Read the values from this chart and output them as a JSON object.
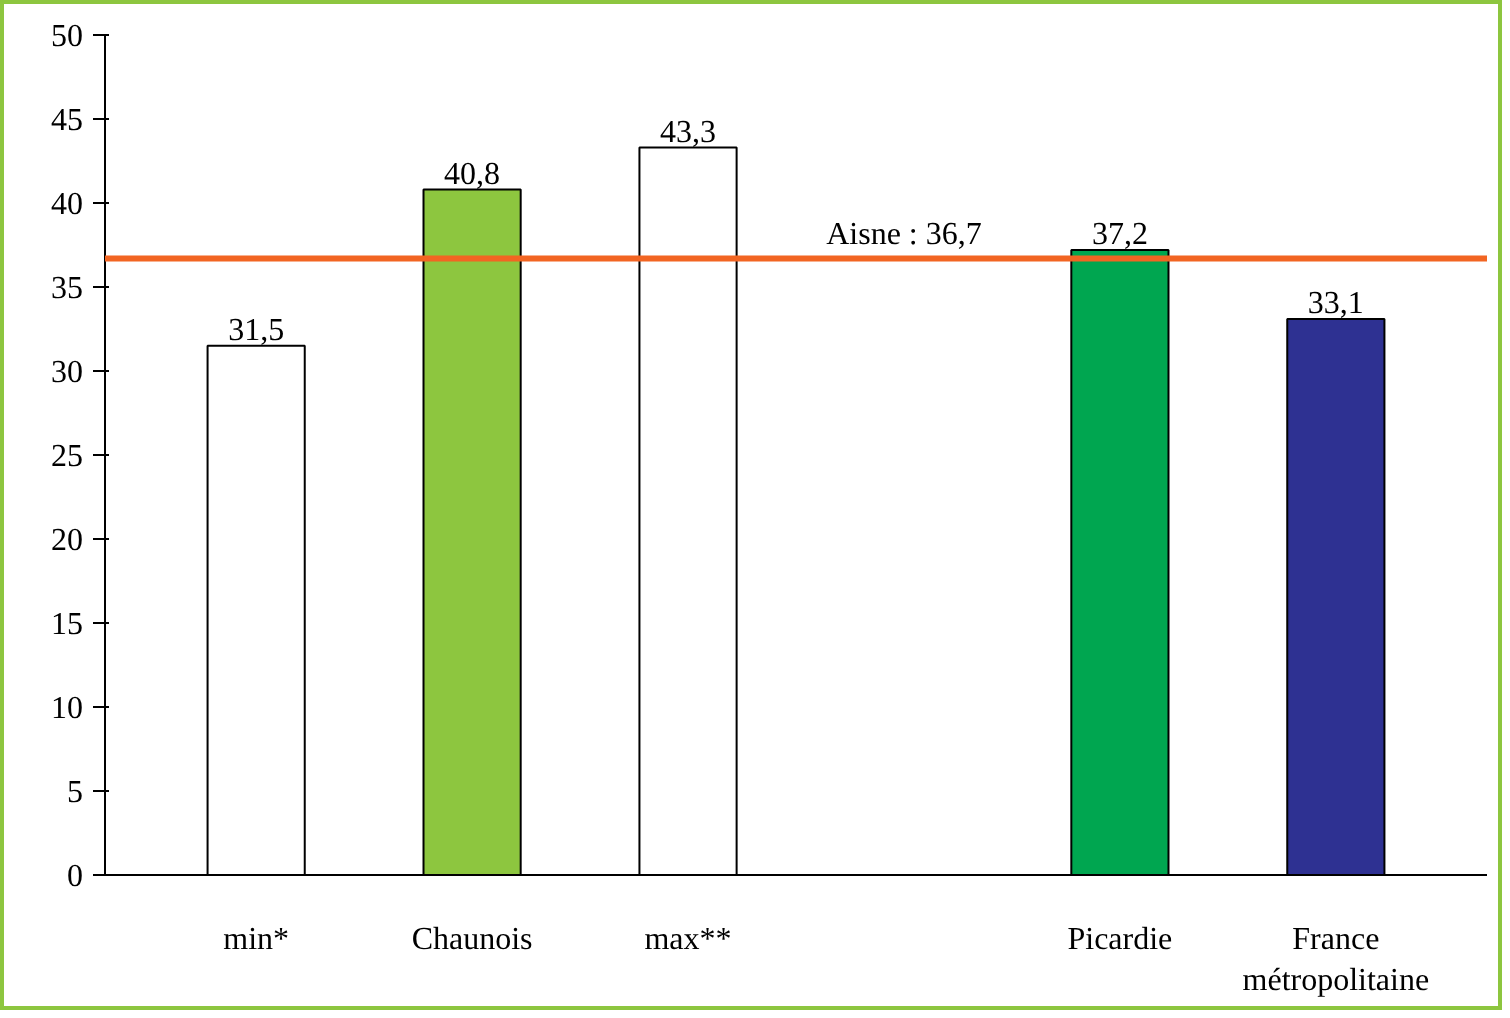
{
  "chart_data": {
    "type": "bar",
    "categories": [
      "min*",
      "Chaunois",
      "max**",
      null,
      "Picardie",
      "France\nmétropolitaine"
    ],
    "values": [
      31.5,
      40.8,
      43.3,
      null,
      37.2,
      33.1
    ],
    "colors": [
      "#ffffff",
      "#8dc63f",
      "#ffffff",
      "#ffffff",
      "#00a650",
      "#2e3192"
    ],
    "value_labels": [
      "31,5",
      "40,8",
      "43,3",
      null,
      "37,2",
      "33,1"
    ],
    "ylim": [
      0,
      50
    ],
    "yticks": [
      0,
      5,
      10,
      15,
      20,
      25,
      30,
      35,
      40,
      45,
      50
    ],
    "ref_lines": [
      {
        "axis": "y",
        "value": 36.7,
        "label": "Aisne : 36,7",
        "color": "#f26522"
      }
    ],
    "grid": false
  }
}
